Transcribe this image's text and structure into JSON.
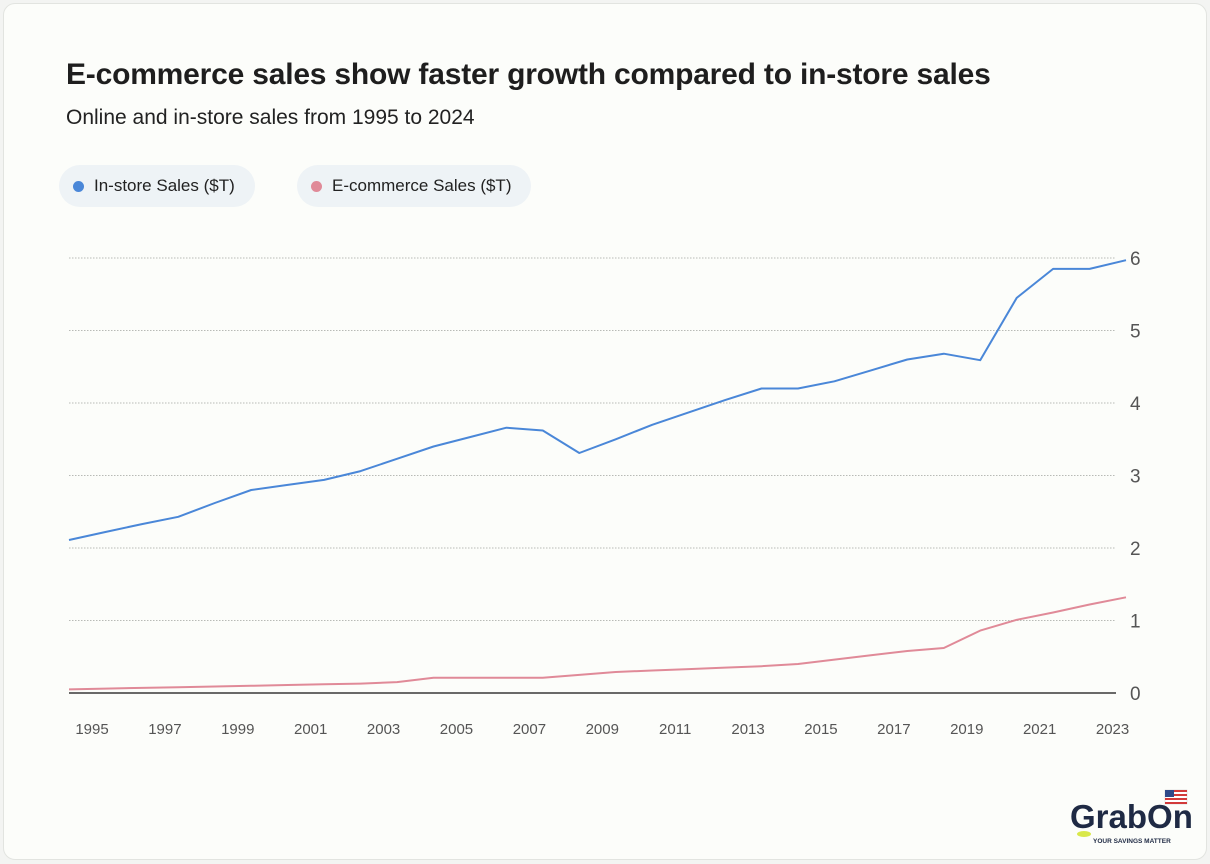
{
  "chart_data": {
    "type": "line",
    "title": "E-commerce sales show faster growth compared to in-store sales",
    "subtitle": "Online and in-store sales from 1995 to 2024",
    "x": [
      1995,
      1996,
      1997,
      1998,
      1999,
      2000,
      2001,
      2002,
      2003,
      2004,
      2005,
      2006,
      2007,
      2008,
      2009,
      2010,
      2011,
      2012,
      2013,
      2014,
      2015,
      2016,
      2017,
      2018,
      2019,
      2020,
      2021,
      2022,
      2023,
      2024
    ],
    "series": [
      {
        "name": "In-store Sales ($T)",
        "color": "#4a87d8",
        "values": [
          2.11,
          2.22,
          2.33,
          2.43,
          2.62,
          2.8,
          2.87,
          2.94,
          3.06,
          3.23,
          3.4,
          3.53,
          3.66,
          3.62,
          3.31,
          3.5,
          3.7,
          3.87,
          4.04,
          4.2,
          4.2,
          4.3,
          4.45,
          4.6,
          4.68,
          4.59,
          5.45,
          5.85,
          5.85,
          5.97
        ]
      },
      {
        "name": "E-commerce Sales ($T)",
        "color": "#e08a98",
        "values": [
          0.05,
          0.06,
          0.07,
          0.08,
          0.09,
          0.1,
          0.11,
          0.12,
          0.13,
          0.15,
          0.21,
          0.21,
          0.21,
          0.21,
          0.25,
          0.29,
          0.31,
          0.33,
          0.35,
          0.37,
          0.4,
          0.46,
          0.52,
          0.58,
          0.62,
          0.86,
          1.01,
          1.11,
          1.22,
          1.32
        ]
      }
    ],
    "xticks": [
      "1995",
      "1997",
      "1999",
      "2001",
      "2003",
      "2005",
      "2007",
      "2009",
      "2011",
      "2013",
      "2015",
      "2017",
      "2019",
      "2021",
      "2023"
    ],
    "yticks": [
      "0",
      "1",
      "2",
      "3",
      "4",
      "5",
      "6"
    ],
    "ylim": [
      0,
      6
    ],
    "xlim": [
      1995,
      2024
    ],
    "grid": true,
    "legend_position": "top-left",
    "yaxis_side": "right"
  },
  "logo": {
    "text": "GrabOn",
    "tagline": "YOUR SAVINGS MATTER"
  }
}
